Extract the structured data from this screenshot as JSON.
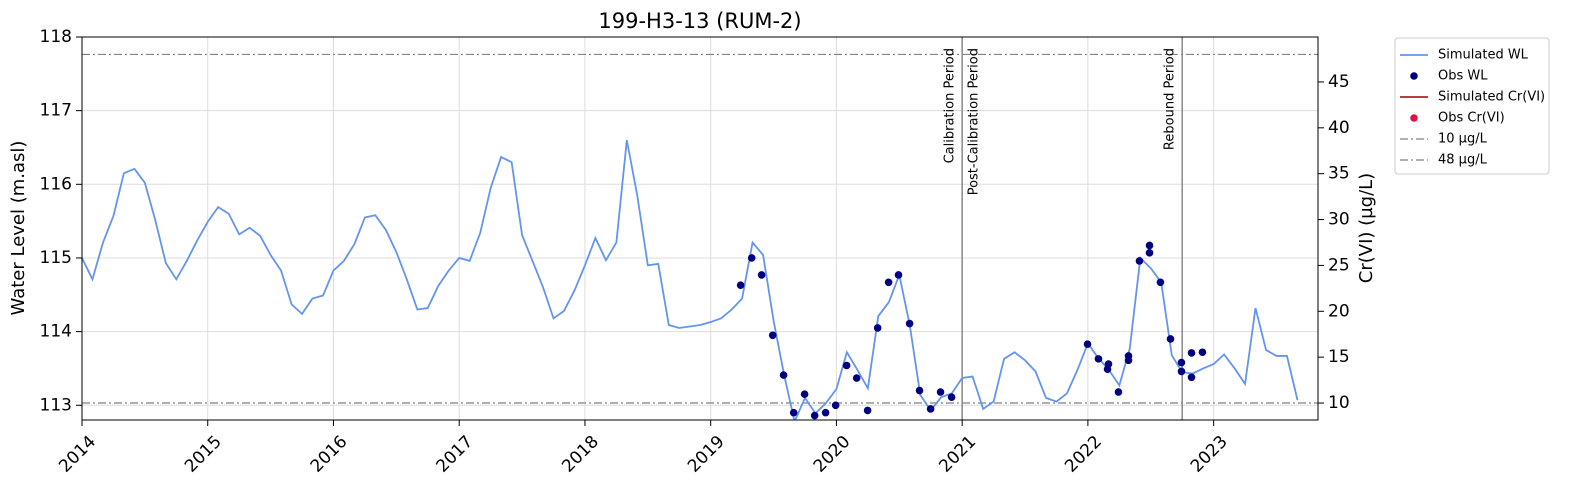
{
  "chart_data": {
    "type": "line",
    "title": "199-H3-13 (RUM-2)",
    "ylabel": "Water Level (m.asl)",
    "y2label": "Cr(VI) (µg/L)",
    "xlim": [
      2014,
      2023.83
    ],
    "xticks": [
      2014,
      2015,
      2016,
      2017,
      2018,
      2019,
      2020,
      2021,
      2022,
      2023
    ],
    "ylim": [
      112.8,
      118
    ],
    "yticks": [
      113,
      114,
      115,
      116,
      117,
      118
    ],
    "y2lim": [
      8.15,
      49.9
    ],
    "y2ticks": [
      10,
      15,
      20,
      25,
      30,
      35,
      40,
      45
    ],
    "grid": true,
    "legend": "outside upper right",
    "series": [
      {
        "name": "Simulated WL",
        "kind": "line",
        "color": "#6495ed",
        "axis": "y",
        "x": [
          2014,
          2014.083,
          2014.167,
          2014.25,
          2014.333,
          2014.417,
          2014.5,
          2014.583,
          2014.667,
          2014.75,
          2014.833,
          2014.917,
          2015,
          2015.083,
          2015.167,
          2015.25,
          2015.333,
          2015.417,
          2015.5,
          2015.583,
          2015.667,
          2015.75,
          2015.833,
          2015.917,
          2016,
          2016.083,
          2016.167,
          2016.25,
          2016.333,
          2016.417,
          2016.5,
          2016.583,
          2016.667,
          2016.75,
          2016.833,
          2016.917,
          2017,
          2017.083,
          2017.167,
          2017.25,
          2017.333,
          2017.417,
          2017.5,
          2017.583,
          2017.667,
          2017.75,
          2017.833,
          2017.917,
          2018,
          2018.083,
          2018.167,
          2018.25,
          2018.333,
          2018.417,
          2018.5,
          2018.583,
          2018.667,
          2018.75,
          2018.833,
          2018.917,
          2019,
          2019.083,
          2019.167,
          2019.25,
          2019.333,
          2019.417,
          2019.5,
          2019.583,
          2019.667,
          2019.75,
          2019.833,
          2019.917,
          2020,
          2020.083,
          2020.167,
          2020.25,
          2020.333,
          2020.417,
          2020.5,
          2020.583,
          2020.667,
          2020.75,
          2020.833,
          2020.917,
          2021,
          2021.083,
          2021.167,
          2021.25,
          2021.333,
          2021.417,
          2021.5,
          2021.583,
          2021.667,
          2021.75,
          2021.833,
          2021.917,
          2022,
          2022.083,
          2022.167,
          2022.25,
          2022.333,
          2022.417,
          2022.5,
          2022.583,
          2022.667,
          2022.75,
          2022.833,
          2022.917,
          2023,
          2023.083,
          2023.167,
          2023.25,
          2023.333,
          2023.417,
          2023.5,
          2023.583,
          2023.667
        ],
        "values": [
          115.0,
          114.71,
          115.21,
          115.57,
          116.15,
          116.21,
          116.02,
          115.51,
          114.93,
          114.71,
          114.96,
          115.24,
          115.49,
          115.69,
          115.6,
          115.32,
          115.41,
          115.3,
          115.04,
          114.83,
          114.37,
          114.24,
          114.45,
          114.49,
          114.83,
          114.96,
          115.19,
          115.55,
          115.58,
          115.38,
          115.08,
          114.71,
          114.3,
          114.32,
          114.62,
          114.83,
          115.0,
          114.96,
          115.34,
          115.95,
          116.37,
          116.3,
          115.31,
          114.96,
          114.6,
          114.18,
          114.28,
          114.56,
          114.9,
          115.27,
          114.97,
          115.21,
          116.6,
          115.84,
          114.9,
          114.92,
          114.09,
          114.05,
          114.07,
          114.09,
          114.13,
          114.18,
          114.3,
          114.45,
          115.21,
          115.04,
          114.15,
          113.42,
          112.78,
          113.1,
          112.89,
          113.03,
          113.22,
          113.72,
          113.48,
          113.23,
          114.21,
          114.4,
          114.77,
          114.09,
          113.14,
          112.93,
          113.11,
          113.16,
          113.37,
          113.39,
          112.95,
          113.05,
          113.63,
          113.72,
          113.61,
          113.46,
          113.1,
          113.05,
          113.16,
          113.48,
          113.84,
          113.64,
          113.48,
          113.27,
          113.77,
          115.0,
          114.86,
          114.67,
          113.68,
          113.45,
          113.43,
          113.5,
          113.56,
          113.69,
          113.5,
          113.29,
          114.32,
          113.75,
          113.67,
          113.67,
          113.07
        ]
      },
      {
        "name": "Obs WL",
        "kind": "dots",
        "color": "#000080",
        "axis": "y",
        "x": [
          2019.238,
          2019.326,
          2019.405,
          2019.493,
          2019.58,
          2019.66,
          2019.747,
          2019.827,
          2019.914,
          2019.994,
          2020.081,
          2020.161,
          2020.248,
          2020.328,
          2020.415,
          2020.494,
          2020.582,
          2020.661,
          2020.749,
          2020.828,
          2020.916,
          2021.997,
          2022.084,
          2022.164,
          2022.156,
          2022.243,
          2022.323,
          2022.323,
          2022.41,
          2022.49,
          2022.49,
          2022.577,
          2022.657,
          2022.744,
          2022.744,
          2022.824,
          2022.824,
          2022.911
        ],
        "values": [
          114.63,
          115.0,
          114.77,
          113.95,
          113.41,
          112.9,
          113.15,
          112.86,
          112.9,
          113.0,
          113.54,
          113.37,
          112.93,
          114.05,
          114.67,
          114.77,
          114.11,
          113.2,
          112.95,
          113.18,
          113.11,
          113.83,
          113.63,
          113.56,
          113.49,
          113.18,
          113.67,
          113.61,
          114.96,
          115.07,
          115.17,
          114.67,
          113.9,
          113.58,
          113.46,
          113.38,
          113.71,
          113.72
        ]
      },
      {
        "name": "Simulated Cr(VI)",
        "kind": "line",
        "color": "#b22222",
        "axis": "y2",
        "x": [],
        "values": []
      },
      {
        "name": "Obs Cr(VI)",
        "kind": "dots",
        "color": "#dc143c",
        "axis": "y2",
        "x": [],
        "values": []
      }
    ],
    "hlines": [
      {
        "name": "10 µg/L",
        "value": 10,
        "axis": "y2",
        "color": "#808080"
      },
      {
        "name": "48 µg/L",
        "value": 48,
        "axis": "y2",
        "color": "#808080"
      }
    ],
    "vlines": [
      2021,
      2022.75
    ],
    "annotations": [
      {
        "text": "Calibration Period",
        "x": 2021,
        "side": "left"
      },
      {
        "text": "Post-Calibration Period",
        "x": 2021,
        "side": "right"
      },
      {
        "text": "Rebound Period",
        "x": 2022.75,
        "side": "left"
      }
    ]
  }
}
